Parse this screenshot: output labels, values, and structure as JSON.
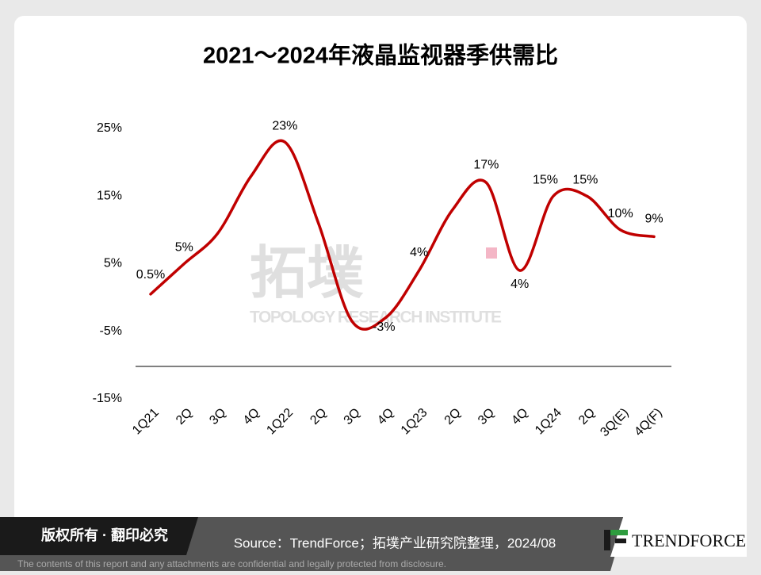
{
  "chart_data": {
    "type": "line",
    "title": "2021～2024年液晶监视器季供需比",
    "categories": [
      "1Q21",
      "2Q",
      "3Q",
      "4Q",
      "1Q22",
      "2Q",
      "3Q",
      "4Q",
      "1Q23",
      "2Q",
      "3Q",
      "4Q",
      "1Q24",
      "2Q",
      "3Q(E)",
      "4Q(F)"
    ],
    "values": [
      0.5,
      5,
      9.5,
      18,
      23,
      11,
      -3.5,
      -3,
      4,
      13,
      17,
      4,
      15,
      15,
      10,
      9
    ],
    "value_labels": [
      "0.5%",
      "5%",
      null,
      null,
      "23%",
      null,
      null,
      "-3%",
      "4%",
      null,
      "17%",
      "4%",
      "15%",
      "15%",
      "10%",
      "9%"
    ],
    "color": "#c00000",
    "ylim": [
      -15,
      25
    ],
    "yticks": [
      {
        "value": -15,
        "label": "-15%"
      },
      {
        "value": -5,
        "label": "-5%"
      },
      {
        "value": 5,
        "label": "5%"
      },
      {
        "value": 15,
        "label": "15%"
      },
      {
        "value": 25,
        "label": "25%"
      }
    ],
    "grid": false
  },
  "watermark": {
    "logo": "拓墣",
    "name": "TOPOLOGY RESEARCH INSTITUTE"
  },
  "footer": {
    "copyright": "版权所有 · 翻印必究",
    "source": "Source：TrendForce；拓墣产业研究院整理，2024/08",
    "brand": "TRENDFORCE",
    "disclaimer": "The contents of this report and any attachments are confidential and legally protected from disclosure."
  }
}
